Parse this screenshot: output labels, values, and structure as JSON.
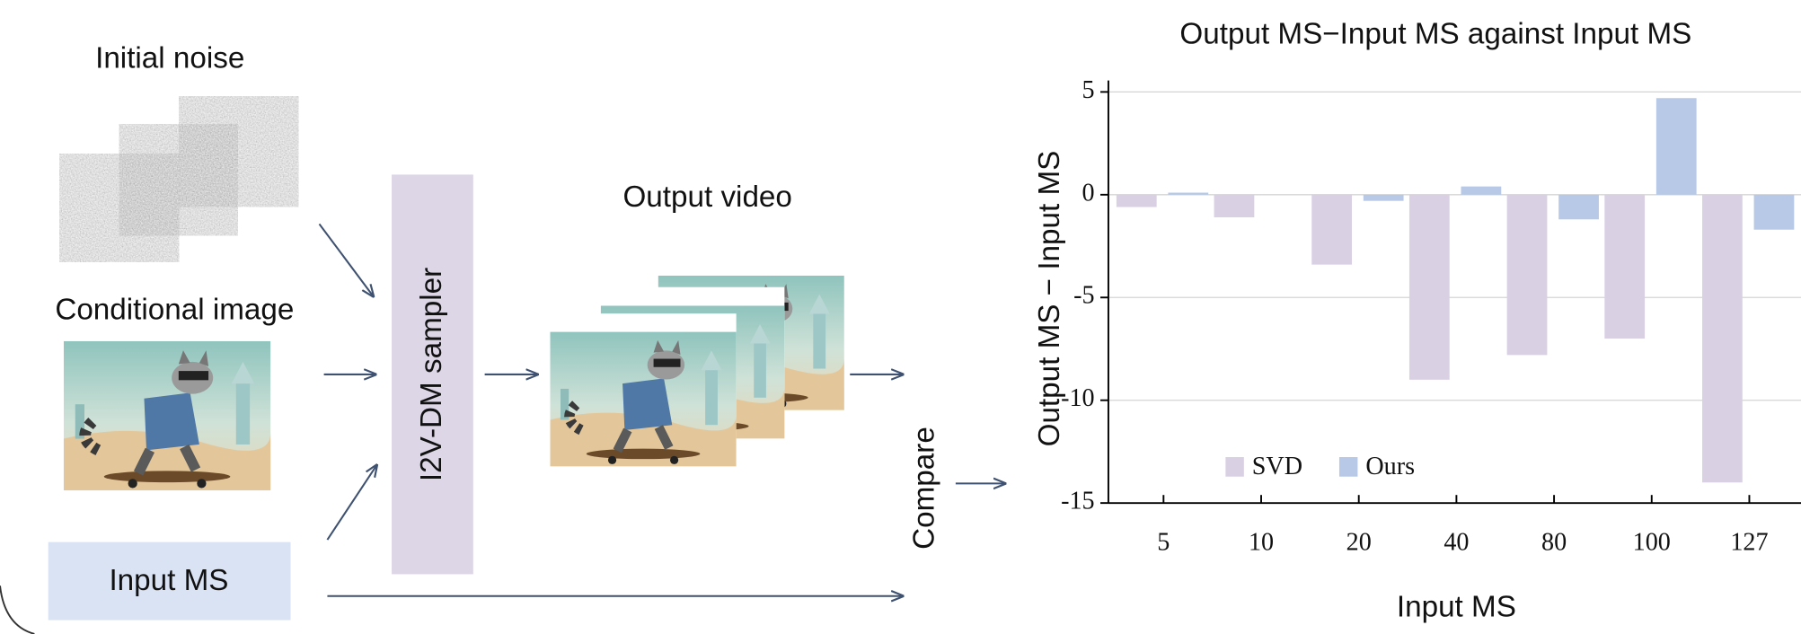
{
  "diagram": {
    "noise_label": "Initial noise",
    "image_label": "Conditional image",
    "input_label": "Input MS",
    "sampler_label": "I2V-DM sampler",
    "output_label": "Output video",
    "compare_label": "Compare"
  },
  "chart_data": {
    "type": "bar",
    "title": "Output MS−Input MS against Input MS",
    "x_label": "Input MS",
    "y_label": "Output MS − Input MS",
    "categories": [
      "5",
      "10",
      "20",
      "40",
      "80",
      "100",
      "127"
    ],
    "series": [
      {
        "name": "SVD",
        "color": "#d9d0e4",
        "values": [
          -0.6,
          -1.1,
          -3.4,
          -9.0,
          -7.8,
          -7.0,
          -14.0
        ]
      },
      {
        "name": "Ours",
        "color": "#b7c9e7",
        "values": [
          0.1,
          0,
          -0.3,
          0.4,
          -1.2,
          4.7,
          -1.7
        ]
      }
    ],
    "ylim": [
      -15,
      5
    ],
    "yticks": [
      5,
      0,
      -5,
      -10,
      -15
    ],
    "grid": true,
    "legend": "lower left"
  }
}
